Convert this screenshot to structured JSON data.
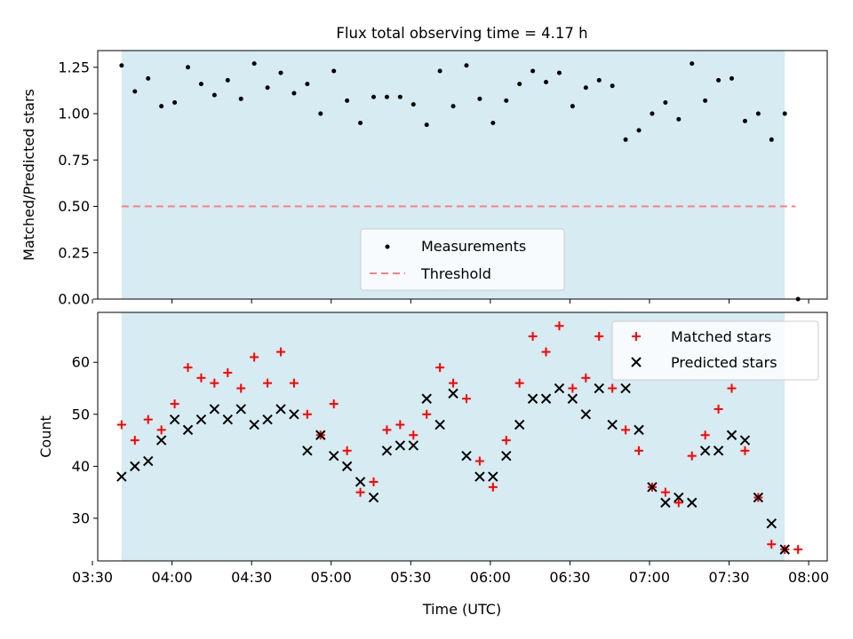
{
  "chart_data": [
    {
      "type": "scatter",
      "title": "Flux total observing time = 4.17 h",
      "xlabel": "",
      "ylabel": "Matched/Predicted stars",
      "ylim": [
        0.0,
        1.34
      ],
      "yticks": [
        "0.00",
        "0.25",
        "0.50",
        "0.75",
        "1.00",
        "1.25"
      ],
      "shaded_span": [
        "03:41",
        "07:51"
      ],
      "shade_color": "#add8e6",
      "threshold": {
        "name": "Threshold",
        "value": 0.5,
        "color": "#ff7f7f"
      },
      "legend_placement": "lower center",
      "series": [
        {
          "name": "Measurements",
          "color": "#000000",
          "x": [
            "03:41",
            "03:46",
            "03:51",
            "03:56",
            "04:01",
            "04:06",
            "04:11",
            "04:16",
            "04:21",
            "04:26",
            "04:31",
            "04:36",
            "04:41",
            "04:46",
            "04:51",
            "04:56",
            "05:01",
            "05:06",
            "05:11",
            "05:16",
            "05:21",
            "05:26",
            "05:31",
            "05:36",
            "05:41",
            "05:46",
            "05:51",
            "05:56",
            "06:01",
            "06:06",
            "06:11",
            "06:16",
            "06:21",
            "06:26",
            "06:31",
            "06:36",
            "06:41",
            "06:46",
            "06:51",
            "06:56",
            "07:01",
            "07:06",
            "07:11",
            "07:16",
            "07:21",
            "07:26",
            "07:31",
            "07:36",
            "07:41",
            "07:46",
            "07:51",
            "07:56"
          ],
          "y": [
            1.26,
            1.12,
            1.19,
            1.04,
            1.06,
            1.25,
            1.16,
            1.1,
            1.18,
            1.08,
            1.27,
            1.14,
            1.22,
            1.11,
            1.16,
            1.0,
            1.23,
            1.07,
            0.95,
            1.09,
            1.09,
            1.09,
            1.05,
            0.94,
            1.23,
            1.04,
            1.26,
            1.08,
            0.95,
            1.07,
            1.16,
            1.23,
            1.17,
            1.22,
            1.04,
            1.14,
            1.18,
            1.15,
            0.86,
            0.91,
            1.0,
            1.06,
            0.97,
            1.27,
            1.07,
            1.18,
            1.19,
            0.96,
            1.0,
            0.86,
            1.0,
            0.0
          ]
        }
      ]
    },
    {
      "type": "scatter",
      "title": "",
      "xlabel": "Time (UTC)",
      "ylabel": "Count",
      "ylim": [
        21.8,
        69.6
      ],
      "yticks": [
        "30",
        "40",
        "50",
        "60"
      ],
      "xticks": [
        "03:30",
        "04:00",
        "04:30",
        "05:00",
        "05:30",
        "06:00",
        "06:30",
        "07:00",
        "07:30",
        "08:00"
      ],
      "shaded_span": [
        "03:41",
        "07:51"
      ],
      "shade_color": "#add8e6",
      "legend_placement": "upper right",
      "series": [
        {
          "name": "Matched stars",
          "color": "#ff0000",
          "marker": "+",
          "x": [
            "03:41",
            "03:46",
            "03:51",
            "03:56",
            "04:01",
            "04:06",
            "04:11",
            "04:16",
            "04:21",
            "04:26",
            "04:31",
            "04:36",
            "04:41",
            "04:46",
            "04:51",
            "04:56",
            "05:01",
            "05:06",
            "05:11",
            "05:16",
            "05:21",
            "05:26",
            "05:31",
            "05:36",
            "05:41",
            "05:46",
            "05:51",
            "05:56",
            "06:01",
            "06:06",
            "06:11",
            "06:16",
            "06:21",
            "06:26",
            "06:31",
            "06:36",
            "06:41",
            "06:46",
            "06:51",
            "06:56",
            "07:01",
            "07:06",
            "07:11",
            "07:16",
            "07:21",
            "07:26",
            "07:31",
            "07:36",
            "07:41",
            "07:46",
            "07:51",
            "07:56"
          ],
          "y": [
            48,
            45,
            49,
            47,
            52,
            59,
            57,
            56,
            58,
            55,
            61,
            56,
            62,
            56,
            50,
            46,
            52,
            43,
            35,
            37,
            47,
            48,
            46,
            50,
            59,
            56,
            53,
            41,
            36,
            45,
            56,
            65,
            62,
            67,
            55,
            57,
            65,
            55,
            47,
            43,
            36,
            35,
            33,
            42,
            46,
            51,
            55,
            43,
            34,
            25,
            24,
            24
          ]
        },
        {
          "name": "Predicted stars",
          "color": "#000000",
          "marker": "x",
          "x": [
            "03:41",
            "03:46",
            "03:51",
            "03:56",
            "04:01",
            "04:06",
            "04:11",
            "04:16",
            "04:21",
            "04:26",
            "04:31",
            "04:36",
            "04:41",
            "04:46",
            "04:51",
            "04:56",
            "05:01",
            "05:06",
            "05:11",
            "05:16",
            "05:21",
            "05:26",
            "05:31",
            "05:36",
            "05:41",
            "05:46",
            "05:51",
            "05:56",
            "06:01",
            "06:06",
            "06:11",
            "06:16",
            "06:21",
            "06:26",
            "06:31",
            "06:36",
            "06:41",
            "06:46",
            "06:51",
            "06:56",
            "07:01",
            "07:06",
            "07:11",
            "07:16",
            "07:21",
            "07:26",
            "07:31",
            "07:36",
            "07:41",
            "07:46",
            "07:51"
          ],
          "y": [
            38,
            40,
            41,
            45,
            49,
            47,
            49,
            51,
            49,
            51,
            48,
            49,
            51,
            50,
            43,
            46,
            42,
            40,
            37,
            34,
            43,
            44,
            44,
            53,
            48,
            54,
            42,
            38,
            38,
            42,
            48,
            53,
            53,
            55,
            53,
            50,
            55,
            48,
            55,
            47,
            36,
            33,
            34,
            33,
            43,
            43,
            46,
            45,
            34,
            29,
            24
          ]
        }
      ]
    }
  ]
}
